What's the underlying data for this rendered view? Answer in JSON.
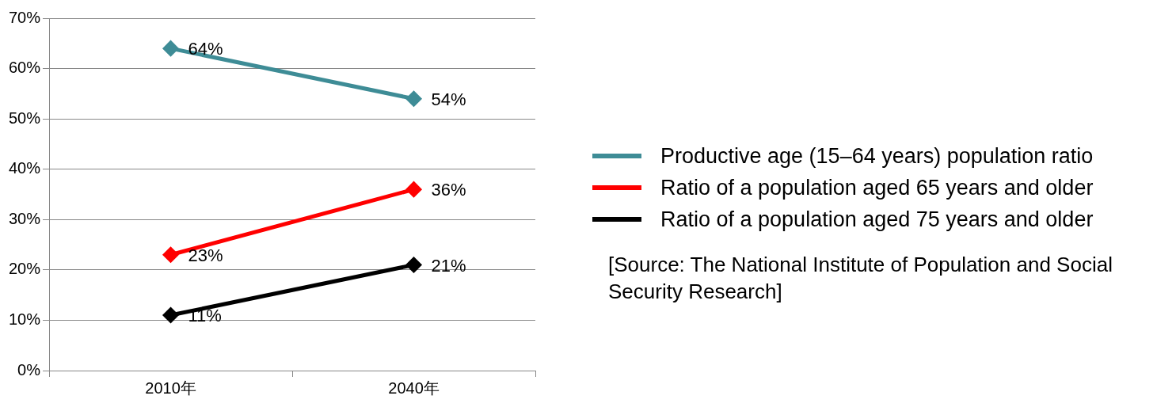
{
  "chart_data": {
    "type": "line",
    "categories": [
      "2010年",
      "2040年"
    ],
    "series": [
      {
        "name": "Productive age (15–64 years) population ratio",
        "color": "#3e8c96",
        "values": [
          64,
          54
        ],
        "value_labels": [
          "64%",
          "54%"
        ]
      },
      {
        "name": "Ratio of a population aged 65 years and older",
        "color": "#ff0000",
        "values": [
          23,
          36
        ],
        "value_labels": [
          "23%",
          "36%"
        ]
      },
      {
        "name": "Ratio of a population aged 75 years and older",
        "color": "#000000",
        "values": [
          11,
          21
        ],
        "value_labels": [
          "11%",
          "21%"
        ]
      }
    ],
    "ylim": [
      0,
      70
    ],
    "yticks": [
      {
        "value": 0,
        "label": "0%"
      },
      {
        "value": 10,
        "label": "10%"
      },
      {
        "value": 20,
        "label": "20%"
      },
      {
        "value": 30,
        "label": "30%"
      },
      {
        "value": 40,
        "label": "40%"
      },
      {
        "value": 50,
        "label": "50%"
      },
      {
        "value": 60,
        "label": "60%"
      },
      {
        "value": 70,
        "label": "70%"
      }
    ],
    "grid": "y",
    "legend": "right",
    "marker": "diamond",
    "line_style": "solid",
    "annotations": [
      "[Source: The National Institute of Population and Social Security Research]"
    ]
  }
}
